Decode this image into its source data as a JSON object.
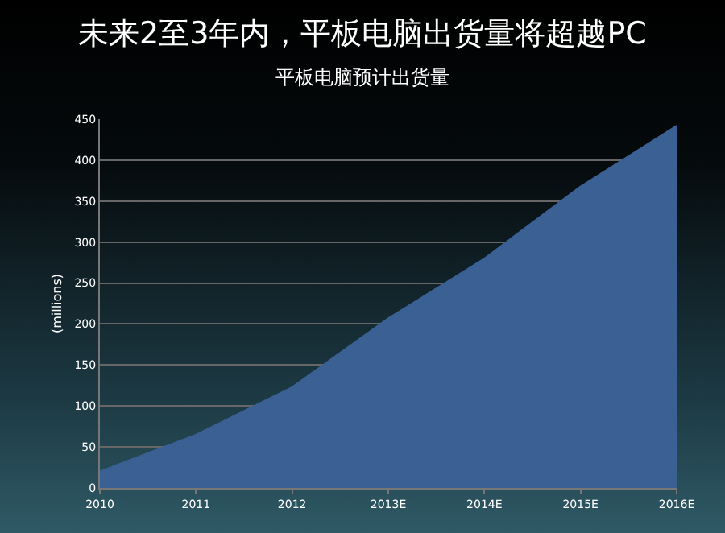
{
  "chart_data": {
    "type": "area",
    "title": "未来2至3年内，平板电脑出货量将超越PC",
    "subtitle": "平板电脑预计出货量",
    "ylabel": "(millions)",
    "categories": [
      "2010",
      "2011",
      "2012",
      "2013E",
      "2014E",
      "2015E",
      "2016E"
    ],
    "values": [
      20,
      65,
      123,
      207,
      280,
      368,
      442
    ],
    "color": "#3a6094",
    "ylim": [
      0,
      450
    ],
    "yticks": [
      0,
      50,
      100,
      150,
      200,
      250,
      300,
      350,
      400,
      450
    ],
    "grid": "y"
  }
}
